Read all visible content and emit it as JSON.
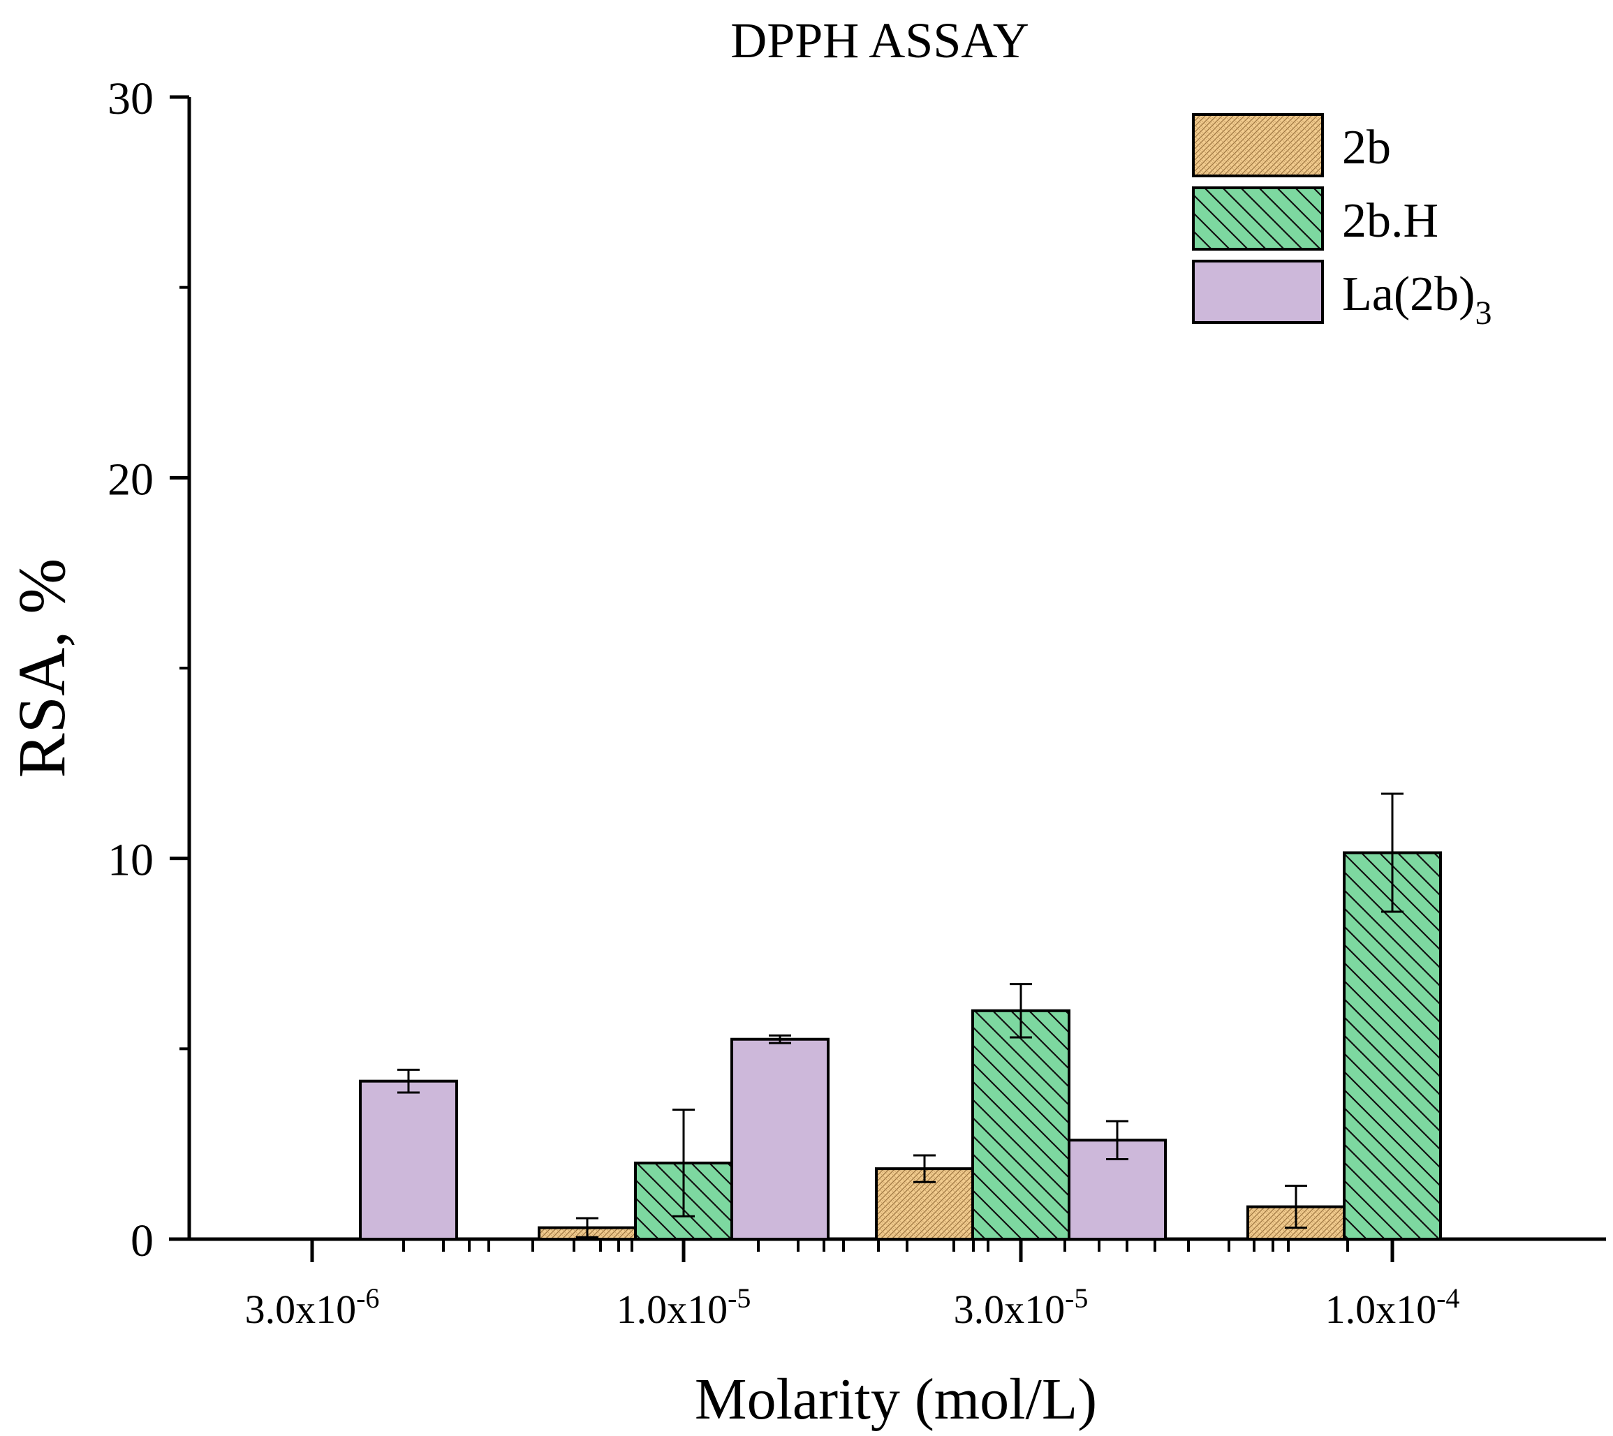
{
  "chart_data": {
    "type": "bar",
    "title": "DPPH ASSAY",
    "xlabel": "Molarity (mol/L)",
    "ylabel": "RSA, %",
    "ylim": [
      0,
      30
    ],
    "yticks": [
      "0",
      "10",
      "20",
      "30"
    ],
    "categories": [
      {
        "base": "3.0x10",
        "exp": "-6"
      },
      {
        "base": "1.0x10",
        "exp": "-5"
      },
      {
        "base": "3.0x10",
        "exp": "-5"
      },
      {
        "base": "1.0x10",
        "exp": "-4"
      }
    ],
    "series": [
      {
        "name": "2b",
        "legend_sub": "",
        "pattern": "dots",
        "color": "#f2cc8f",
        "values": [
          null,
          0.3,
          1.85,
          0.85
        ],
        "errors": [
          null,
          0.25,
          0.35,
          0.55
        ]
      },
      {
        "name": "2b.H",
        "legend_sub": "",
        "pattern": "hatch",
        "color": "#7dd8a0",
        "values": [
          null,
          2.0,
          6.0,
          10.15
        ],
        "errors": [
          null,
          1.4,
          0.7,
          1.55
        ]
      },
      {
        "name": "La(2b)",
        "legend_sub": "3",
        "pattern": "solid",
        "color": "#cdb8da",
        "values": [
          4.15,
          5.25,
          2.6,
          null
        ],
        "errors": [
          0.3,
          0.1,
          0.5,
          null
        ]
      }
    ],
    "legend_position": "top-right",
    "grid": false
  }
}
